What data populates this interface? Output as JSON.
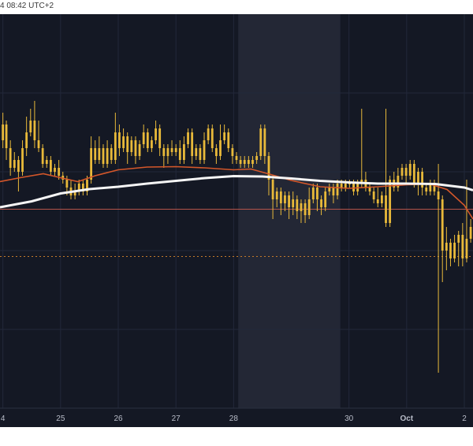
{
  "header": {
    "timestamp_text": "4 08:42 UTC+2"
  },
  "colors": {
    "background": "#141824",
    "highlight_band": "#232735",
    "candle": "#e8b93a",
    "ma_short": "#d4572a",
    "ma_long": "#f5f5f5",
    "hline_red": "#b5544a",
    "hline_orange": "#c47a2a",
    "grid": "#22283a",
    "axis_text": "#b8bcc8"
  },
  "chart_data": {
    "type": "candlestick",
    "x_axis": {
      "tick_labels": [
        "4",
        "25",
        "26",
        "27",
        "28",
        "30",
        "Oct",
        "2"
      ],
      "tick_days": [
        0.0,
        1.0,
        2.0,
        3.0,
        4.0,
        6.0,
        7.0,
        8.0
      ],
      "range_days": [
        -0.05,
        8.15
      ],
      "highlight_band_days": [
        4.08,
        5.85
      ]
    },
    "y_axis": {
      "range": [
        0,
        100
      ],
      "grid": true
    },
    "horizontal_lines": [
      {
        "value": 50.5,
        "style": "solid",
        "color": "#b5544a"
      },
      {
        "value": 38.5,
        "style": "dotted",
        "color": "#c47a2a"
      }
    ],
    "ma_long": [
      [
        -0.05,
        51.0
      ],
      [
        0.5,
        52.5
      ],
      [
        1.0,
        54.5
      ],
      [
        1.5,
        55.6
      ],
      [
        2.0,
        56.2
      ],
      [
        2.5,
        57.0
      ],
      [
        3.0,
        57.7
      ],
      [
        3.5,
        58.4
      ],
      [
        4.0,
        58.9
      ],
      [
        4.5,
        58.8
      ],
      [
        5.0,
        58.3
      ],
      [
        5.5,
        57.7
      ],
      [
        6.0,
        57.3
      ],
      [
        6.5,
        57.0
      ],
      [
        7.0,
        57.0
      ],
      [
        7.5,
        56.9
      ],
      [
        8.0,
        56.0
      ],
      [
        8.15,
        55.3
      ]
    ],
    "ma_short": [
      [
        -0.05,
        57.5
      ],
      [
        0.3,
        58.5
      ],
      [
        0.7,
        59.5
      ],
      [
        1.0,
        58.5
      ],
      [
        1.3,
        57.5
      ],
      [
        1.6,
        59.0
      ],
      [
        2.0,
        60.5
      ],
      [
        2.5,
        61.2
      ],
      [
        3.0,
        61.3
      ],
      [
        3.5,
        61.0
      ],
      [
        4.0,
        60.5
      ],
      [
        4.3,
        60.7
      ],
      [
        4.6,
        59.5
      ],
      [
        5.0,
        57.8
      ],
      [
        5.5,
        56.2
      ],
      [
        6.0,
        55.8
      ],
      [
        6.5,
        56.2
      ],
      [
        7.0,
        56.7
      ],
      [
        7.4,
        56.9
      ],
      [
        7.7,
        55.5
      ],
      [
        8.0,
        51.5
      ],
      [
        8.15,
        48.0
      ]
    ],
    "candles": [
      [
        0.0,
        68,
        72,
        75,
        66
      ],
      [
        0.06,
        72,
        66,
        73,
        63
      ],
      [
        0.13,
        66,
        61,
        68,
        59
      ],
      [
        0.2,
        61,
        63,
        65,
        60
      ],
      [
        0.27,
        63,
        60,
        64,
        55
      ],
      [
        0.34,
        60,
        66,
        68,
        59
      ],
      [
        0.41,
        66,
        70,
        74,
        64
      ],
      [
        0.48,
        70,
        73,
        76,
        69
      ],
      [
        0.55,
        73,
        68,
        78,
        66
      ],
      [
        0.62,
        68,
        66,
        73,
        65
      ],
      [
        0.69,
        66,
        62,
        67,
        61
      ],
      [
        0.76,
        62,
        63,
        64,
        61
      ],
      [
        0.83,
        63,
        60,
        64,
        59
      ],
      [
        0.9,
        60,
        61,
        62,
        59
      ],
      [
        0.97,
        61,
        59,
        63,
        58
      ],
      [
        1.04,
        59,
        58,
        60,
        57
      ],
      [
        1.11,
        58,
        56,
        59,
        54
      ],
      [
        1.18,
        56,
        54,
        58,
        53
      ],
      [
        1.25,
        54,
        55,
        57,
        53
      ],
      [
        1.32,
        55,
        57,
        58,
        54
      ],
      [
        1.39,
        57,
        55,
        58,
        54
      ],
      [
        1.46,
        55,
        58,
        59,
        54
      ],
      [
        1.53,
        58,
        66,
        69,
        57
      ],
      [
        1.6,
        66,
        63,
        68,
        62
      ],
      [
        1.67,
        63,
        66,
        69,
        62
      ],
      [
        1.74,
        66,
        62,
        67,
        61
      ],
      [
        1.81,
        62,
        66,
        68,
        61
      ],
      [
        1.88,
        66,
        63,
        67,
        62
      ],
      [
        1.95,
        63,
        70,
        75,
        62
      ],
      [
        2.02,
        70,
        66,
        72,
        64
      ],
      [
        2.09,
        66,
        69,
        71,
        65
      ],
      [
        2.16,
        69,
        65,
        70,
        62
      ],
      [
        2.23,
        65,
        68,
        69,
        64
      ],
      [
        2.3,
        68,
        64,
        69,
        62
      ],
      [
        2.37,
        64,
        67,
        68,
        63
      ],
      [
        2.44,
        67,
        70,
        72,
        66
      ],
      [
        2.51,
        70,
        66,
        71,
        65
      ],
      [
        2.58,
        66,
        68,
        69,
        65
      ],
      [
        2.65,
        68,
        71,
        73,
        67
      ],
      [
        2.72,
        71,
        66,
        72,
        64
      ],
      [
        2.79,
        66,
        64,
        67,
        61
      ],
      [
        2.86,
        64,
        66,
        67,
        62
      ],
      [
        2.93,
        66,
        65,
        68,
        64
      ],
      [
        3.0,
        65,
        66,
        67,
        64
      ],
      [
        3.07,
        66,
        63,
        68,
        62
      ],
      [
        3.14,
        63,
        67,
        69,
        62
      ],
      [
        3.21,
        67,
        70,
        71,
        66
      ],
      [
        3.28,
        70,
        64,
        71,
        62
      ],
      [
        3.35,
        64,
        66,
        67,
        63
      ],
      [
        3.42,
        66,
        63,
        67,
        62
      ],
      [
        3.49,
        63,
        68,
        70,
        62
      ],
      [
        3.56,
        68,
        71,
        72,
        67
      ],
      [
        3.63,
        71,
        66,
        72,
        65
      ],
      [
        3.7,
        66,
        64,
        67,
        62
      ],
      [
        3.77,
        64,
        68,
        72,
        63
      ],
      [
        3.84,
        68,
        70,
        72,
        67
      ],
      [
        3.91,
        70,
        66,
        71,
        65
      ],
      [
        3.98,
        66,
        64,
        67,
        62
      ],
      [
        4.05,
        64,
        63,
        65,
        62
      ],
      [
        4.12,
        63,
        62,
        64,
        61
      ],
      [
        4.19,
        62,
        63,
        64,
        61
      ],
      [
        4.26,
        63,
        62,
        64,
        61
      ],
      [
        4.33,
        62,
        63,
        64,
        61
      ],
      [
        4.4,
        63,
        64,
        65,
        62
      ],
      [
        4.47,
        64,
        71,
        72,
        63
      ],
      [
        4.54,
        71,
        64,
        72,
        62
      ],
      [
        4.61,
        64,
        58,
        65,
        54
      ],
      [
        4.68,
        58,
        53,
        59,
        48
      ],
      [
        4.75,
        53,
        55,
        56,
        51
      ],
      [
        4.82,
        55,
        52,
        56,
        49
      ],
      [
        4.89,
        52,
        54,
        55,
        50
      ],
      [
        4.96,
        54,
        51,
        55,
        48
      ],
      [
        5.03,
        51,
        53,
        55,
        49
      ],
      [
        5.1,
        53,
        50,
        54,
        48
      ],
      [
        5.17,
        50,
        52,
        53,
        47
      ],
      [
        5.24,
        52,
        49,
        53,
        47
      ],
      [
        5.31,
        49,
        53,
        56,
        48
      ],
      [
        5.38,
        53,
        56,
        57,
        52
      ],
      [
        5.45,
        56,
        53,
        57,
        50
      ],
      [
        5.52,
        53,
        51,
        54,
        49
      ],
      [
        5.59,
        51,
        55,
        56,
        50
      ],
      [
        5.66,
        55,
        56,
        57,
        54
      ],
      [
        5.73,
        56,
        54,
        57,
        52
      ],
      [
        5.8,
        54,
        57,
        58,
        53
      ],
      [
        5.87,
        57,
        56,
        58,
        55
      ],
      [
        5.94,
        56,
        57,
        58,
        55
      ],
      [
        6.01,
        57,
        57,
        58,
        56
      ],
      [
        6.08,
        57,
        55,
        58,
        54
      ],
      [
        6.15,
        55,
        57,
        58,
        54
      ],
      [
        6.22,
        57,
        58,
        76,
        56
      ],
      [
        6.29,
        58,
        56,
        60,
        55
      ],
      [
        6.36,
        56,
        55,
        57,
        54
      ],
      [
        6.43,
        55,
        53,
        56,
        52
      ],
      [
        6.5,
        53,
        52,
        56,
        51
      ],
      [
        6.57,
        52,
        54,
        55,
        51
      ],
      [
        6.64,
        54,
        47,
        76,
        46
      ],
      [
        6.71,
        47,
        58,
        59,
        46
      ],
      [
        6.78,
        58,
        56,
        60,
        55
      ],
      [
        6.85,
        56,
        59,
        61,
        55
      ],
      [
        6.92,
        59,
        61,
        62,
        58
      ],
      [
        6.99,
        61,
        59,
        62,
        57
      ],
      [
        7.06,
        59,
        62,
        63,
        58
      ],
      [
        7.13,
        62,
        57,
        63,
        56
      ],
      [
        7.2,
        57,
        60,
        61,
        54
      ],
      [
        7.27,
        60,
        56,
        61,
        54
      ],
      [
        7.34,
        56,
        55,
        57,
        54
      ],
      [
        7.41,
        55,
        57,
        58,
        54
      ],
      [
        7.48,
        57,
        55,
        58,
        54
      ],
      [
        7.55,
        55,
        53,
        62,
        9
      ],
      [
        7.62,
        53,
        40,
        54,
        32
      ],
      [
        7.69,
        40,
        42,
        46,
        35
      ],
      [
        7.76,
        42,
        38,
        43,
        36
      ],
      [
        7.83,
        38,
        42,
        44,
        37
      ],
      [
        7.9,
        42,
        44,
        45,
        36
      ],
      [
        7.97,
        44,
        38,
        47,
        36
      ],
      [
        8.04,
        38,
        43,
        58,
        37
      ],
      [
        8.11,
        43,
        46,
        48,
        42
      ]
    ]
  }
}
